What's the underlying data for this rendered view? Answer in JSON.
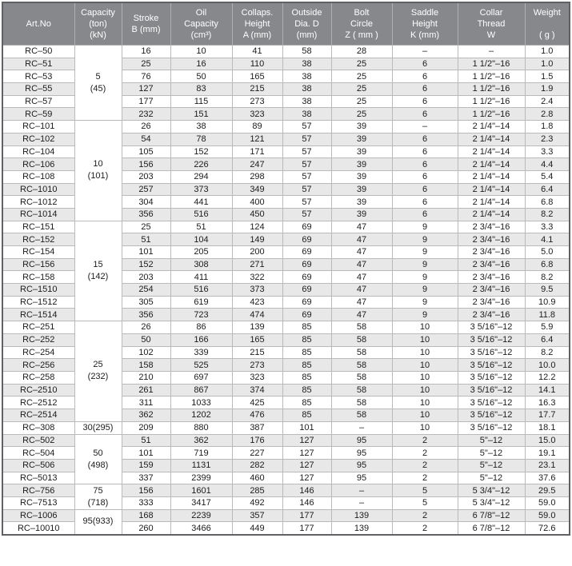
{
  "colors": {
    "header_bg": "#86888b",
    "header_text": "#ffffff",
    "row_bg": "#ffffff",
    "row_alt_bg": "#e8e8e9",
    "border": "#b9babc",
    "outer_border": "#606164",
    "cell_text": "#1c1c1c"
  },
  "table": {
    "columns": [
      {
        "id": "art-no",
        "lines": [
          "Art.No"
        ]
      },
      {
        "id": "capacity",
        "lines": [
          "Capacity",
          "(ton)",
          "(kN)"
        ]
      },
      {
        "id": "stroke",
        "lines": [
          "Stroke",
          "B (mm)"
        ]
      },
      {
        "id": "oil-capacity",
        "lines": [
          "Oil",
          "Capacity",
          "(cm³)"
        ]
      },
      {
        "id": "collapsed-height",
        "lines": [
          "Collaps.",
          "Height",
          "A (mm)"
        ]
      },
      {
        "id": "outside-dia",
        "lines": [
          "Outside",
          "Dia. D",
          "(mm)"
        ]
      },
      {
        "id": "bolt-circle",
        "lines": [
          "Bolt",
          "Circle",
          "Z ( mm )"
        ]
      },
      {
        "id": "saddle-height",
        "lines": [
          "Saddle",
          "Height",
          "K (mm)"
        ]
      },
      {
        "id": "collar-thread",
        "lines": [
          "Collar",
          "Thread",
          "W"
        ]
      },
      {
        "id": "weight",
        "lines": [
          "Weight",
          "",
          "( g )"
        ]
      }
    ],
    "cell_fields": [
      "art_no",
      "stroke",
      "oil_capacity",
      "collapsed_height",
      "outside_dia",
      "bolt_circle",
      "saddle_height",
      "collar_thread",
      "weight"
    ],
    "groups": [
      {
        "capacity": [
          "5",
          "(45)"
        ],
        "rows": [
          [
            "RC–50",
            "16",
            "10",
            "41",
            "58",
            "28",
            "–",
            "–",
            "1.0"
          ],
          [
            "RC–51",
            "25",
            "16",
            "110",
            "38",
            "25",
            "6",
            "1 1/2\"–16",
            "1.0"
          ],
          [
            "RC–53",
            "76",
            "50",
            "165",
            "38",
            "25",
            "6",
            "1 1/2\"–16",
            "1.5"
          ],
          [
            "RC–55",
            "127",
            "83",
            "215",
            "38",
            "25",
            "6",
            "1 1/2\"–16",
            "1.9"
          ],
          [
            "RC–57",
            "177",
            "115",
            "273",
            "38",
            "25",
            "6",
            "1 1/2\"–16",
            "2.4"
          ],
          [
            "RC–59",
            "232",
            "151",
            "323",
            "38",
            "25",
            "6",
            "1 1/2\"–16",
            "2.8"
          ]
        ]
      },
      {
        "capacity": [
          "10",
          "(101)"
        ],
        "rows": [
          [
            "RC–101",
            "26",
            "38",
            "89",
            "57",
            "39",
            "–",
            "2 1/4\"–14",
            "1.8"
          ],
          [
            "RC–102",
            "54",
            "78",
            "121",
            "57",
            "39",
            "6",
            "2 1/4\"–14",
            "2.3"
          ],
          [
            "RC–104",
            "105",
            "152",
            "171",
            "57",
            "39",
            "6",
            "2 1/4\"–14",
            "3.3"
          ],
          [
            "RC–106",
            "156",
            "226",
            "247",
            "57",
            "39",
            "6",
            "2 1/4\"–14",
            "4.4"
          ],
          [
            "RC–108",
            "203",
            "294",
            "298",
            "57",
            "39",
            "6",
            "2 1/4\"–14",
            "5.4"
          ],
          [
            "RC–1010",
            "257",
            "373",
            "349",
            "57",
            "39",
            "6",
            "2 1/4\"–14",
            "6.4"
          ],
          [
            "RC–1012",
            "304",
            "441",
            "400",
            "57",
            "39",
            "6",
            "2 1/4\"–14",
            "6.8"
          ],
          [
            "RC–1014",
            "356",
            "516",
            "450",
            "57",
            "39",
            "6",
            "2 1/4\"–14",
            "8.2"
          ]
        ]
      },
      {
        "capacity": [
          "15",
          "(142)"
        ],
        "rows": [
          [
            "RC–151",
            "25",
            "51",
            "124",
            "69",
            "47",
            "9",
            "2 3/4\"–16",
            "3.3"
          ],
          [
            "RC–152",
            "51",
            "104",
            "149",
            "69",
            "47",
            "9",
            "2 3/4\"–16",
            "4.1"
          ],
          [
            "RC–154",
            "101",
            "205",
            "200",
            "69",
            "47",
            "9",
            "2 3/4\"–16",
            "5.0"
          ],
          [
            "RC–156",
            "152",
            "308",
            "271",
            "69",
            "47",
            "9",
            "2 3/4\"–16",
            "6.8"
          ],
          [
            "RC–158",
            "203",
            "411",
            "322",
            "69",
            "47",
            "9",
            "2 3/4\"–16",
            "8.2"
          ],
          [
            "RC–1510",
            "254",
            "516",
            "373",
            "69",
            "47",
            "9",
            "2 3/4\"–16",
            "9.5"
          ],
          [
            "RC–1512",
            "305",
            "619",
            "423",
            "69",
            "47",
            "9",
            "2 3/4\"–16",
            "10.9"
          ],
          [
            "RC–1514",
            "356",
            "723",
            "474",
            "69",
            "47",
            "9",
            "2 3/4\"–16",
            "11.8"
          ]
        ]
      },
      {
        "capacity": [
          "25",
          "(232)"
        ],
        "rows": [
          [
            "RC–251",
            "26",
            "86",
            "139",
            "85",
            "58",
            "10",
            "3 5/16\"–12",
            "5.9"
          ],
          [
            "RC–252",
            "50",
            "166",
            "165",
            "85",
            "58",
            "10",
            "3 5/16\"–12",
            "6.4"
          ],
          [
            "RC–254",
            "102",
            "339",
            "215",
            "85",
            "58",
            "10",
            "3 5/16\"–12",
            "8.2"
          ],
          [
            "RC–256",
            "158",
            "525",
            "273",
            "85",
            "58",
            "10",
            "3 5/16\"–12",
            "10.0"
          ],
          [
            "RC–258",
            "210",
            "697",
            "323",
            "85",
            "58",
            "10",
            "3 5/16\"–12",
            "12.2"
          ],
          [
            "RC–2510",
            "261",
            "867",
            "374",
            "85",
            "58",
            "10",
            "3 5/16\"–12",
            "14.1"
          ],
          [
            "RC–2512",
            "311",
            "1033",
            "425",
            "85",
            "58",
            "10",
            "3 5/16\"–12",
            "16.3"
          ],
          [
            "RC–2514",
            "362",
            "1202",
            "476",
            "85",
            "58",
            "10",
            "3 5/16\"–12",
            "17.7"
          ]
        ]
      },
      {
        "capacity": [
          "30(295)"
        ],
        "rows": [
          [
            "RC–308",
            "209",
            "880",
            "387",
            "101",
            "–",
            "10",
            "3 5/16\"–12",
            "18.1"
          ]
        ]
      },
      {
        "capacity": [
          "50",
          "(498)"
        ],
        "rows": [
          [
            "RC–502",
            "51",
            "362",
            "176",
            "127",
            "95",
            "2",
            "5\"–12",
            "15.0"
          ],
          [
            "RC–504",
            "101",
            "719",
            "227",
            "127",
            "95",
            "2",
            "5\"–12",
            "19.1"
          ],
          [
            "RC–506",
            "159",
            "1131",
            "282",
            "127",
            "95",
            "2",
            "5\"–12",
            "23.1"
          ],
          [
            "RC–5013",
            "337",
            "2399",
            "460",
            "127",
            "95",
            "2",
            "5\"–12",
            "37.6"
          ]
        ]
      },
      {
        "capacity": [
          "75",
          "(718)"
        ],
        "rows": [
          [
            "RC–756",
            "156",
            "1601",
            "285",
            "146",
            "–",
            "5",
            "5 3/4\"–12",
            "29.5"
          ],
          [
            "RC–7513",
            "333",
            "3417",
            "492",
            "146",
            "–",
            "5",
            "5 3/4\"–12",
            "59.0"
          ]
        ]
      },
      {
        "capacity": [
          "95(933)"
        ],
        "rows": [
          [
            "RC–1006",
            "168",
            "2239",
            "357",
            "177",
            "139",
            "2",
            "6 7/8\"–12",
            "59.0"
          ],
          [
            "RC–10010",
            "260",
            "3466",
            "449",
            "177",
            "139",
            "2",
            "6 7/8\"–12",
            "72.6"
          ]
        ]
      }
    ]
  }
}
